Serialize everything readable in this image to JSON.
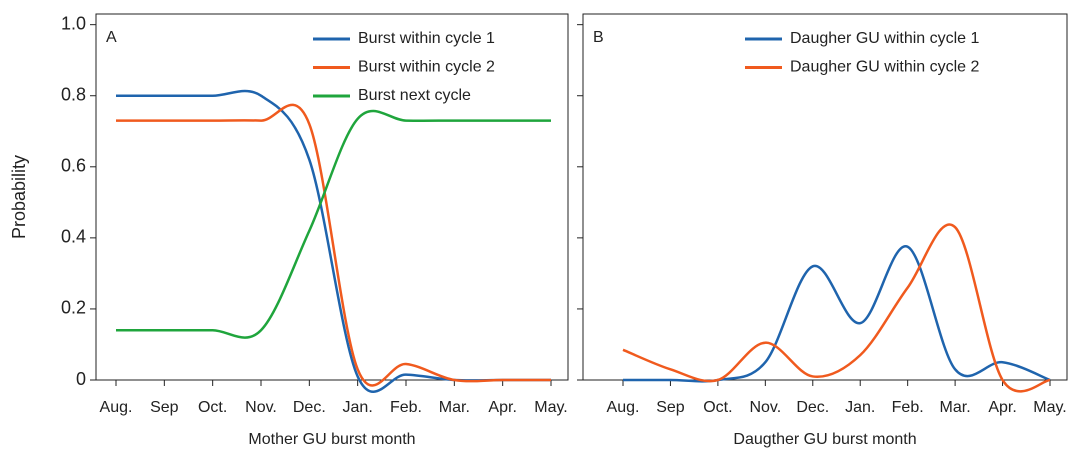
{
  "chart_data": [
    {
      "type": "line",
      "panel_label": "A",
      "xlabel": "Mother GU burst month",
      "ylabel": "Probability",
      "categories": [
        "Aug.",
        "Sep",
        "Oct.",
        "Nov.",
        "Dec.",
        "Jan.",
        "Feb.",
        "Mar.",
        "Apr.",
        "May."
      ],
      "series": [
        {
          "name": "Burst within cycle 1",
          "color": "#1f64ad",
          "values": [
            0.8,
            0.8,
            0.8,
            0.8,
            0.62,
            0.01,
            0.015,
            0,
            0,
            0
          ]
        },
        {
          "name": "Burst within cycle 2",
          "color": "#f05a1e",
          "values": [
            0.73,
            0.73,
            0.73,
            0.73,
            0.72,
            0.03,
            0.045,
            0,
            0,
            0
          ]
        },
        {
          "name": "Burst next cycle",
          "color": "#1fa53c",
          "values": [
            0.14,
            0.14,
            0.14,
            0.14,
            0.42,
            0.735,
            0.73,
            0.73,
            0.73,
            0.73
          ]
        }
      ],
      "ylim": [
        0,
        1.03
      ],
      "yticks": [
        0,
        0.2,
        0.4,
        0.6,
        0.8,
        {
          "value": 1,
          "label": "1.0"
        }
      ],
      "show_ytick_labels": true,
      "legend": "upper right"
    },
    {
      "type": "line",
      "panel_label": "B",
      "xlabel": "Daugther GU burst month",
      "categories": [
        "Aug.",
        "Sep",
        "Oct.",
        "Nov.",
        "Dec.",
        "Jan.",
        "Feb.",
        "Mar.",
        "Apr.",
        "May."
      ],
      "series": [
        {
          "name": "Daugher GU within cycle 1",
          "color": "#1f64ad",
          "values": [
            0,
            0,
            0,
            0.05,
            0.32,
            0.16,
            0.375,
            0.03,
            0.05,
            0
          ]
        },
        {
          "name": "Daugher GU within cycle 2",
          "color": "#f05a1e",
          "values": [
            0.085,
            0.03,
            0,
            0.105,
            0.01,
            0.07,
            0.26,
            0.43,
            0,
            0
          ]
        }
      ],
      "ylim": [
        0,
        1.03
      ],
      "yticks": [
        0,
        0.2,
        0.4,
        0.6,
        0.8,
        1
      ],
      "show_ytick_labels": false,
      "legend": "upper right"
    }
  ]
}
